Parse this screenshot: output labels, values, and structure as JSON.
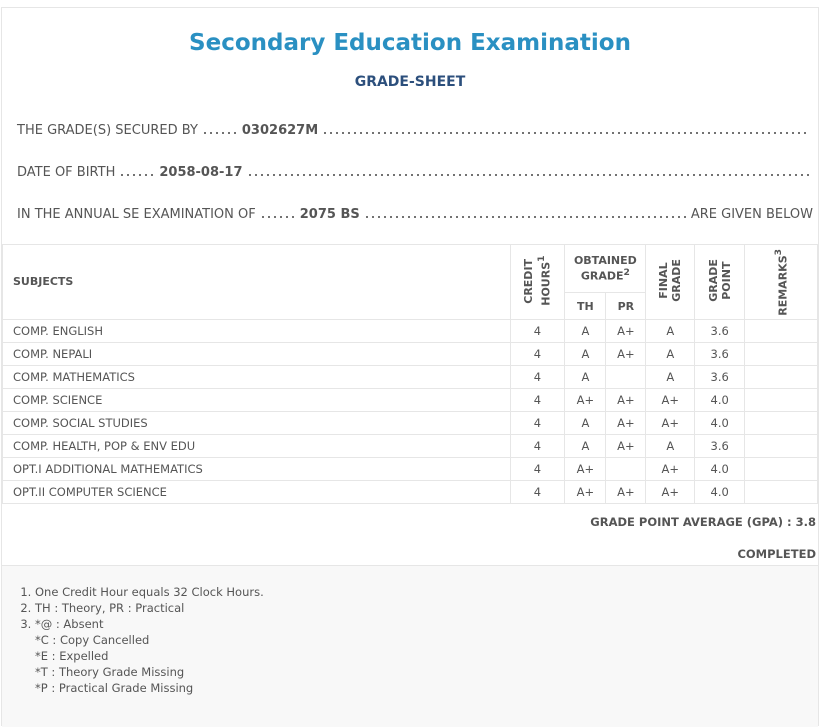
{
  "header": {
    "title": "Secondary Education Examination",
    "subtitle": "GRADE-SHEET"
  },
  "info": [
    {
      "label": "THE GRADE(S) SECURED BY",
      "value": "0302627M"
    },
    {
      "label": "DATE OF BIRTH",
      "value": "2058-08-17"
    },
    {
      "label": "IN THE ANNUAL SE EXAMINATION OF",
      "value": "2075 BS",
      "suffix": "ARE GIVEN BELOW"
    }
  ],
  "table": {
    "headers": {
      "subjects": "SUBJECTS",
      "credit": "CREDIT HOURS",
      "credit_note": "1",
      "obtained": "OBTAINED GRADE",
      "obtained_note": "2",
      "th": "TH",
      "pr": "PR",
      "final": "FINAL GRADE",
      "point": "GRADE POINT",
      "remarks": "REMARKS",
      "remarks_note": "3"
    },
    "rows": [
      [
        "COMP. ENGLISH",
        "4",
        "A",
        "A+",
        "A",
        "3.6"
      ],
      [
        "COMP. NEPALI",
        "4",
        "A",
        "A+",
        "A",
        "3.6"
      ],
      [
        "COMP. MATHEMATICS",
        "4",
        "A",
        null,
        "A",
        "3.6"
      ],
      [
        "COMP. SCIENCE",
        "4",
        "A+",
        "A+",
        "A+",
        "4.0"
      ],
      [
        "COMP. SOCIAL STUDIES",
        "4",
        "A",
        "A+",
        "A+",
        "4.0"
      ],
      [
        "COMP. HEALTH, POP & ENV EDU",
        "4",
        "A",
        "A+",
        "A",
        "3.6"
      ],
      [
        "OPT.I ADDITIONAL MATHEMATICS",
        "4",
        "A+",
        null,
        "A+",
        "4.0"
      ],
      [
        "OPT.II COMPUTER SCIENCE",
        "4",
        "A+",
        "A+",
        "A+",
        "4.0"
      ]
    ]
  },
  "summary": {
    "gpa_label": "GRADE POINT AVERAGE (GPA) :",
    "gpa": "3.8",
    "status": "COMPLETED"
  },
  "notes": [
    "One Credit Hour equals 32 Clock Hours.",
    "TH : Theory, PR : Practical",
    [
      "*@ : Absent",
      "*C : Copy Cancelled",
      "*E : Expelled",
      "*T : Theory Grade Missing",
      "*P : Practical Grade Missing"
    ]
  ]
}
